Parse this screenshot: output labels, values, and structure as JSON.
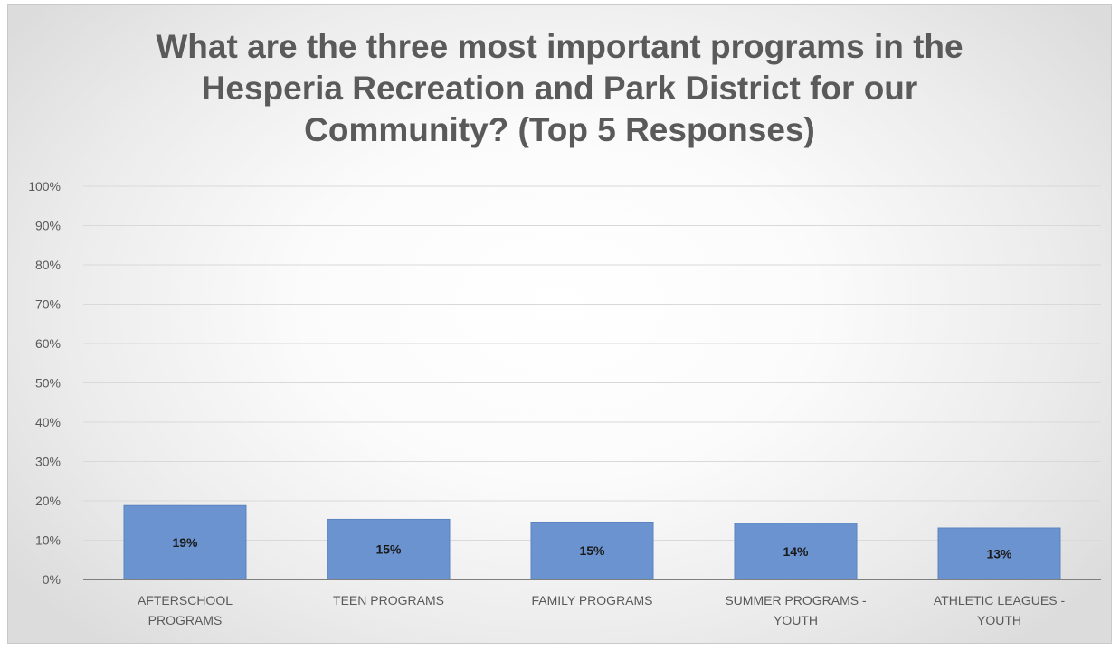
{
  "chart_data": {
    "type": "bar",
    "title_lines": [
      "What are the three most important programs in the",
      "Hesperia Recreation and Park District for our",
      "Community?  (Top 5 Responses)"
    ],
    "categories": [
      [
        "AFTERSCHOOL",
        "PROGRAMS"
      ],
      [
        "TEEN PROGRAMS"
      ],
      [
        "FAMILY PROGRAMS"
      ],
      [
        "SUMMER PROGRAMS -",
        "YOUTH"
      ],
      [
        "ATHLETIC LEAGUES -",
        "YOUTH"
      ]
    ],
    "values": [
      0.188,
      0.153,
      0.146,
      0.143,
      0.131
    ],
    "data_labels": [
      "19%",
      "15%",
      "15%",
      "14%",
      "13%"
    ],
    "y_ticks": [
      "0%",
      "10%",
      "20%",
      "30%",
      "40%",
      "50%",
      "60%",
      "70%",
      "80%",
      "90%",
      "100%"
    ],
    "ylim": [
      0,
      1
    ],
    "grid": true,
    "legend": false,
    "colors": {
      "bar": "#6a93cf",
      "bar_edge": "#5b84c0",
      "grid": "#d9d9d9",
      "axis": "#7f7f7f",
      "tick_text": "#595959",
      "data_label": "#1a1a1a"
    }
  }
}
